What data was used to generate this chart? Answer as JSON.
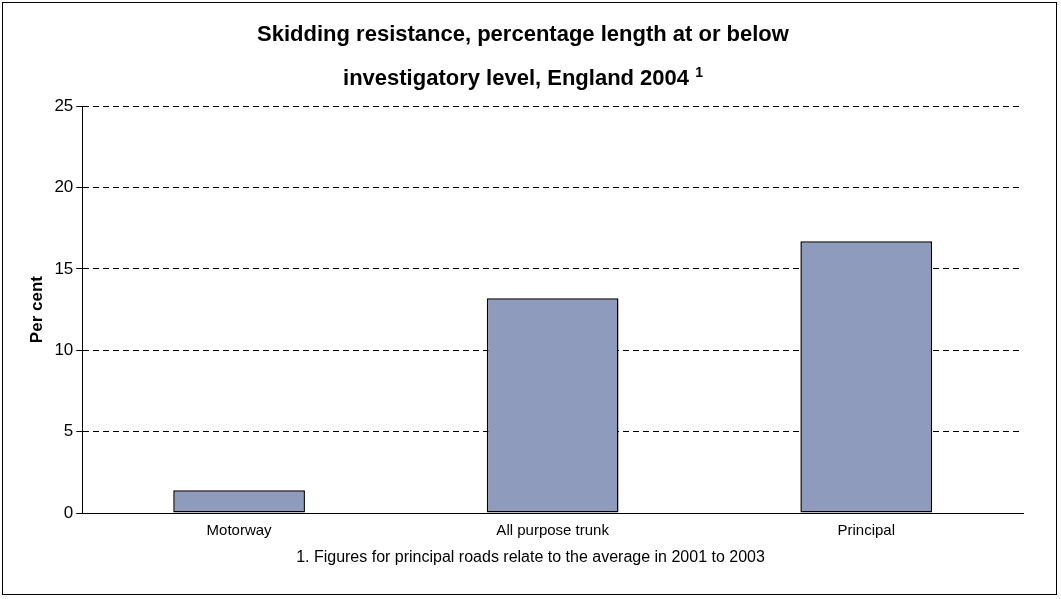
{
  "chart_data": {
    "type": "bar",
    "title": "Skidding resistance, percentage length at or below investigatory level, England 2004 $^{1}$",
    "ylabel": "Per cent",
    "categories": [
      "Motorway",
      "All purpose trunk",
      "Principal"
    ],
    "values": [
      1.4,
      13.2,
      16.7
    ],
    "color": "#8e9bbd",
    "ylim": [
      0,
      25
    ],
    "yticks": [
      0,
      5,
      10,
      15,
      20,
      25
    ],
    "grid": "y",
    "annotations": [
      "1. Figures for principal roads relate to the average in 2001 to 2003"
    ]
  }
}
